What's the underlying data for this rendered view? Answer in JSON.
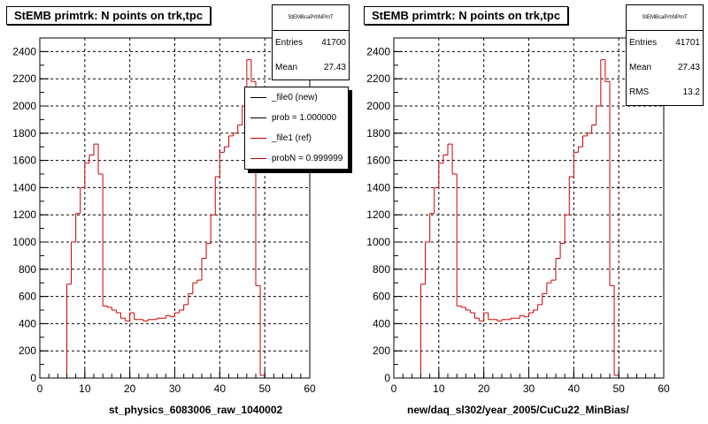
{
  "chart_data": [
    {
      "type": "histogram",
      "title": "StEMB primtrk: N points on trk,tpc",
      "xlabel": "st_physics_6083006_raw_1040002",
      "ylabel": "",
      "xlim": [
        0,
        60
      ],
      "ylim": [
        0,
        2500
      ],
      "x_ticks": [
        0,
        10,
        20,
        30,
        40,
        50,
        60
      ],
      "y_ticks": [
        0,
        200,
        400,
        600,
        800,
        1000,
        1200,
        1400,
        1600,
        1800,
        2000,
        2200,
        2400
      ],
      "grid": true,
      "bin_width": 1,
      "x_start": 5,
      "values": [
        0,
        690,
        1000,
        1210,
        1400,
        1580,
        1640,
        1720,
        1500,
        530,
        520,
        500,
        480,
        440,
        420,
        480,
        430,
        430,
        420,
        430,
        430,
        440,
        440,
        460,
        450,
        480,
        500,
        540,
        620,
        700,
        720,
        880,
        990,
        1200,
        1480,
        1660,
        1700,
        1780,
        1800,
        1860,
        2000,
        2340,
        2180,
        680,
        20,
        0
      ],
      "series_color": "#cc0000",
      "stats": {
        "header": "StEMBcaPrhNPmT",
        "entries_label": "Entries",
        "entries": "41700",
        "mean_label": "Mean",
        "mean": "27.43"
      },
      "legend": [
        "_file0 (new)",
        "prob = 1.000000",
        "_file1 (ref)",
        "probN = 0.999999"
      ],
      "legend_colors": [
        "#000000",
        "#000000",
        "#cc0000",
        "#cc0000"
      ]
    },
    {
      "type": "histogram",
      "title": "StEMB primtrk: N points on trk,tpc",
      "xlabel": "new/daq_sl302/year_2005/CuCu22_MinBias/",
      "ylabel": "",
      "xlim": [
        0,
        60
      ],
      "ylim": [
        0,
        2500
      ],
      "x_ticks": [
        0,
        10,
        20,
        30,
        40,
        50,
        60
      ],
      "y_ticks": [
        0,
        200,
        400,
        600,
        800,
        1000,
        1200,
        1400,
        1600,
        1800,
        2000,
        2200,
        2400
      ],
      "grid": true,
      "bin_width": 1,
      "x_start": 5,
      "values": [
        0,
        690,
        1000,
        1210,
        1400,
        1580,
        1640,
        1720,
        1500,
        530,
        520,
        500,
        480,
        440,
        420,
        480,
        430,
        430,
        420,
        430,
        430,
        440,
        440,
        460,
        450,
        480,
        500,
        540,
        620,
        700,
        720,
        880,
        990,
        1200,
        1480,
        1660,
        1700,
        1780,
        1800,
        1860,
        2000,
        2340,
        2180,
        680,
        20,
        0
      ],
      "series_color": "#cc0000",
      "stats": {
        "header": "StEMBcaPrhNPmT",
        "entries_label": "Entries",
        "entries": "41701",
        "mean_label": "Mean",
        "mean": "27.43",
        "rms_label": "RMS",
        "rms": "13.2"
      }
    }
  ]
}
